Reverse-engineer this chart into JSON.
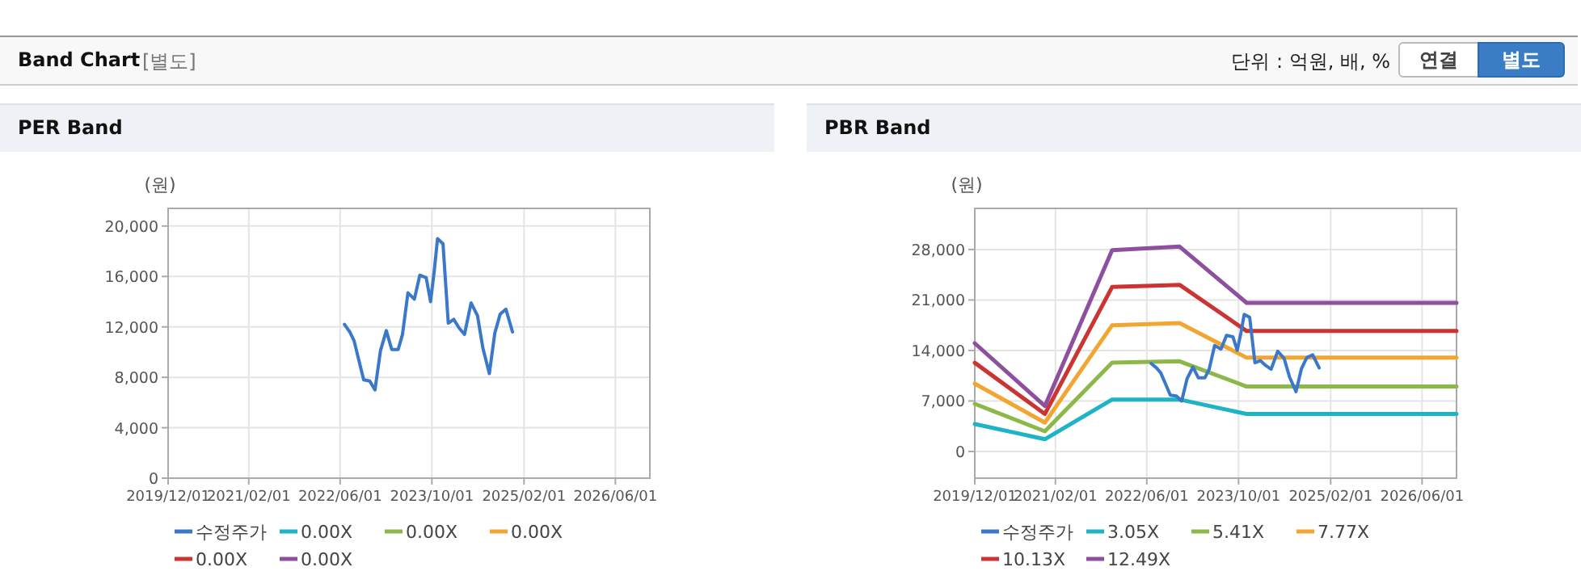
{
  "chart_data": [
    {
      "type": "other",
      "title": "Band Chart",
      "annotations": [
        "[별도]",
        "단위 : 억원, 배, %",
        "연결",
        "별도"
      ]
    },
    {
      "type": "line",
      "title": "PER Band",
      "ylabel": "(원)",
      "grid": true,
      "legend": "bottom",
      "xlim": [
        "2019-12-01",
        "2026-12-01"
      ],
      "xticks": [
        {
          "value": "2019-12-01",
          "label": "2019/12/01"
        },
        {
          "value": "2021-02-01",
          "label": "2021/02/01"
        },
        {
          "value": "2022-06-01",
          "label": "2022/06/01"
        },
        {
          "value": "2023-10-01",
          "label": "2023/10/01"
        },
        {
          "value": "2025-02-01",
          "label": "2025/02/01"
        },
        {
          "value": "2026-06-01",
          "label": "2026/06/01"
        }
      ],
      "ylim": [
        0,
        21400
      ],
      "yticks": [
        0,
        {
          "value": 4000,
          "label": "4,000"
        },
        {
          "value": 8000,
          "label": "8,000"
        },
        {
          "value": 12000,
          "label": "12,000"
        },
        {
          "value": 16000,
          "label": "16,000"
        },
        {
          "value": 20000,
          "label": "20,000"
        }
      ],
      "series": [
        {
          "name": "수정주가",
          "color": "#3a78c9",
          "x": [
            "2022-06-24",
            "2022-07-22",
            "2022-08-14",
            "2022-09-11",
            "2022-10-04",
            "2022-11-05",
            "2022-12-03",
            "2023-01-01",
            "2023-02-01",
            "2023-03-02",
            "2023-04-05",
            "2023-04-28",
            "2023-05-27",
            "2023-06-30",
            "2023-07-29",
            "2023-09-01",
            "2023-09-24",
            "2023-10-14",
            "2023-10-31",
            "2023-11-29",
            "2023-12-27",
            "2024-01-25",
            "2024-02-23",
            "2024-03-22",
            "2024-04-26",
            "2024-05-30",
            "2024-06-28",
            "2024-08-01",
            "2024-08-30",
            "2024-09-27",
            "2024-10-28",
            "2024-12-02"
          ],
          "values": [
            12200,
            11600,
            10900,
            9200,
            7800,
            7700,
            7000,
            10100,
            11700,
            10200,
            10200,
            11400,
            14700,
            14200,
            16100,
            15900,
            14000,
            16500,
            19000,
            18600,
            12300,
            12600,
            11900,
            11400,
            13900,
            12900,
            10300,
            8300,
            11500,
            13000,
            13400,
            11600
          ]
        },
        {
          "name": "0.00X",
          "color": "#1fb3c6"
        },
        {
          "name": "0.00X",
          "color": "#8cb84a"
        },
        {
          "name": "0.00X",
          "color": "#f2a632"
        },
        {
          "name": "0.00X",
          "color": "#cc3333"
        },
        {
          "name": "0.00X",
          "color": "#8e4f9e"
        }
      ]
    },
    {
      "type": "line",
      "title": "PBR Band",
      "ylabel": "(원)",
      "grid": true,
      "legend": "bottom",
      "xlim": [
        "2019-12-01",
        "2026-12-01"
      ],
      "xticks": [
        {
          "value": "2019-12-01",
          "label": "2019/12/01"
        },
        {
          "value": "2021-02-01",
          "label": "2021/02/01"
        },
        {
          "value": "2022-06-01",
          "label": "2022/06/01"
        },
        {
          "value": "2023-10-01",
          "label": "2023/10/01"
        },
        {
          "value": "2025-02-01",
          "label": "2025/02/01"
        },
        {
          "value": "2026-06-01",
          "label": "2026/06/01"
        }
      ],
      "ylim": [
        -3700,
        33700
      ],
      "yticks": [
        0,
        {
          "value": 7000,
          "label": "7,000"
        },
        {
          "value": 14000,
          "label": "14,000"
        },
        {
          "value": 21000,
          "label": "21,000"
        },
        {
          "value": 28000,
          "label": "28,000"
        }
      ],
      "series": [
        {
          "name": "수정주가",
          "color": "#3a78c9",
          "x": [
            "2022-06-24",
            "2022-07-22",
            "2022-08-14",
            "2022-09-11",
            "2022-10-04",
            "2022-11-05",
            "2022-12-03",
            "2023-01-01",
            "2023-02-01",
            "2023-03-02",
            "2023-04-05",
            "2023-04-28",
            "2023-05-27",
            "2023-06-30",
            "2023-07-29",
            "2023-09-01",
            "2023-09-24",
            "2023-10-14",
            "2023-10-31",
            "2023-11-29",
            "2023-12-27",
            "2024-01-25",
            "2024-02-23",
            "2024-03-22",
            "2024-04-26",
            "2024-05-30",
            "2024-06-28",
            "2024-08-01",
            "2024-08-30",
            "2024-09-27",
            "2024-10-28",
            "2024-12-02"
          ],
          "values": [
            12200,
            11600,
            10900,
            9200,
            7800,
            7700,
            7000,
            10100,
            11700,
            10200,
            10200,
            11400,
            14700,
            14200,
            16100,
            15900,
            14000,
            16500,
            19000,
            18600,
            12300,
            12600,
            11900,
            11400,
            13900,
            12900,
            10300,
            8300,
            11500,
            13000,
            13400,
            11600
          ]
        },
        {
          "name": "3.05X",
          "color": "#1fb3c6",
          "x": [
            "2019-12-01",
            "2020-12-07",
            "2021-11-29",
            "2022-11-22",
            "2023-11-13",
            "2026-12-01"
          ],
          "values": [
            3800,
            1700,
            7200,
            7200,
            5200,
            5200
          ]
        },
        {
          "name": "5.41X",
          "color": "#8cb84a",
          "x": [
            "2019-12-01",
            "2020-12-07",
            "2021-11-29",
            "2022-11-22",
            "2023-11-13",
            "2026-12-01"
          ],
          "values": [
            6600,
            2800,
            12300,
            12500,
            9000,
            9000
          ]
        },
        {
          "name": "7.77X",
          "color": "#f2a632",
          "x": [
            "2019-12-01",
            "2020-12-07",
            "2021-11-29",
            "2022-11-22",
            "2023-11-13",
            "2026-12-01"
          ],
          "values": [
            9400,
            4000,
            17500,
            17800,
            13000,
            13000
          ]
        },
        {
          "name": "10.13X",
          "color": "#cc3333",
          "x": [
            "2019-12-01",
            "2020-12-07",
            "2021-11-29",
            "2022-11-22",
            "2023-11-13",
            "2026-12-01"
          ],
          "values": [
            12300,
            5200,
            22800,
            23100,
            16700,
            16700
          ]
        },
        {
          "name": "12.49X",
          "color": "#8e4f9e",
          "x": [
            "2019-12-01",
            "2020-12-07",
            "2021-11-29",
            "2022-11-22",
            "2023-11-13",
            "2026-12-01"
          ],
          "values": [
            15000,
            6300,
            27900,
            28400,
            20600,
            20600
          ]
        }
      ]
    }
  ]
}
